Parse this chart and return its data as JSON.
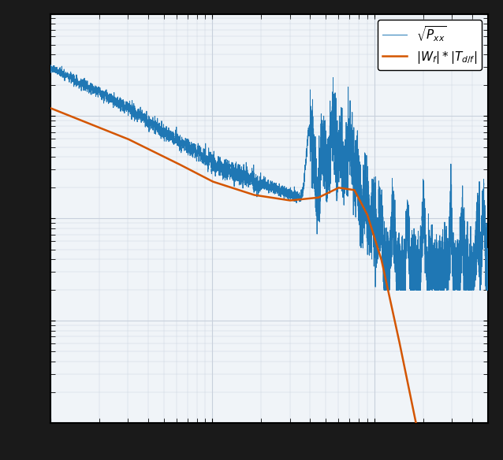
{
  "xlim": [
    1,
    500
  ],
  "ylim": [
    1e-09,
    1e-05
  ],
  "blue_color": "#1f77b4",
  "orange_color": "#d45500",
  "background_color": "#f0f4f8",
  "grid_color": "#c8d0dc",
  "legend_labels": [
    "$\\sqrt{P_{xx}}$",
    "$|W_f| * |T_{d/f}|$"
  ],
  "figsize": [
    6.38,
    5.84
  ],
  "dpi": 100,
  "border_color": "#111111",
  "outer_bg": "#1a1a1a"
}
